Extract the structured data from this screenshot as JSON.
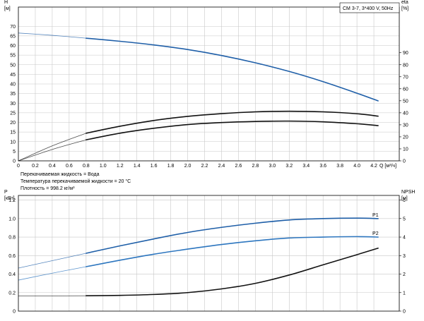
{
  "legend_box": "CM 3-7, 3*400 V, 50Hz",
  "notes": [
    "Перекачиваемая жидкость = Вода",
    "Температура перекачиваемой жидкости = 20 °C",
    "Плотность = 998.2 кг/м³"
  ],
  "colors": {
    "head_curve": "#1f5fa8",
    "p1_curve": "#1f5fa8",
    "p2_curve": "#2d76bf",
    "eta_curve": "#111111",
    "npsh_curve": "#111111",
    "grid": "#c8c8c8"
  },
  "chart_data": [
    {
      "type": "line",
      "x_axis": {
        "label": "Q [м³/ч]",
        "range": [
          0,
          4.5
        ],
        "ticks": [
          0,
          0.2,
          0.4,
          0.6,
          0.8,
          1.0,
          1.2,
          1.4,
          1.6,
          1.8,
          2.0,
          2.2,
          2.4,
          2.6,
          2.8,
          3.0,
          3.2,
          3.4,
          3.6,
          3.8,
          4.0,
          4.2
        ],
        "tick_labels": [
          "0",
          "0.2",
          "0.4",
          "0.6",
          "0.8",
          "1.0",
          "1.2",
          "1.4",
          "1.6",
          "1.8",
          "2.0",
          "2.2",
          "2.4",
          "2.6",
          "2.8",
          "3.0",
          "3.2",
          "3.4",
          "3.6",
          "3.8",
          "4.0",
          "4.2"
        ]
      },
      "y_left": {
        "label_lines": [
          "H",
          "[м]"
        ],
        "range": [
          0,
          80
        ],
        "ticks": [
          0,
          5,
          10,
          15,
          20,
          25,
          30,
          35,
          40,
          45,
          50,
          55,
          60,
          65,
          70
        ],
        "tick_labels": [
          "0",
          "5",
          "10",
          "15",
          "20",
          "25",
          "30",
          "35",
          "40",
          "45",
          "50",
          "55",
          "60",
          "65",
          "70"
        ]
      },
      "y_right": {
        "label_lines": [
          "eta",
          "[%]"
        ],
        "range": [
          0,
          128
        ],
        "ticks": [
          0,
          10,
          20,
          30,
          40,
          50,
          60,
          70,
          80,
          90
        ],
        "tick_labels": [
          "0",
          "10",
          "20",
          "30",
          "40",
          "50",
          "60",
          "70",
          "80",
          "90"
        ]
      },
      "grid": true,
      "series": [
        {
          "key": "head",
          "axis": "left",
          "color": "#1f5fa8",
          "dashed_until": 0.8,
          "x": [
            0,
            0.4,
            0.8,
            1.2,
            1.6,
            2.0,
            2.4,
            2.8,
            3.2,
            3.6,
            4.0,
            4.25
          ],
          "y": [
            66.5,
            65.3,
            63.8,
            62.2,
            60.3,
            57.9,
            54.8,
            51.0,
            46.5,
            41.2,
            35.2,
            31.2
          ]
        },
        {
          "key": "eta_total",
          "axis": "right",
          "color": "#111111",
          "dashed_until": 0.8,
          "x": [
            0,
            0.4,
            0.8,
            1.2,
            1.6,
            2.0,
            2.4,
            2.8,
            3.2,
            3.6,
            4.0,
            4.25
          ],
          "y": [
            0,
            12.5,
            23,
            28.8,
            33.6,
            37.0,
            39.3,
            40.8,
            41.3,
            40.8,
            39.2,
            37.2
          ]
        },
        {
          "key": "eta_pump",
          "axis": "right",
          "color": "#111111",
          "dashed_until": 0.8,
          "x": [
            0,
            0.4,
            0.8,
            1.2,
            1.6,
            2.0,
            2.4,
            2.8,
            3.2,
            3.6,
            4.0,
            4.25
          ],
          "y": [
            0,
            9.5,
            17.5,
            23.0,
            27.1,
            30.2,
            31.9,
            32.8,
            33.1,
            32.5,
            30.9,
            29.3
          ]
        }
      ]
    },
    {
      "type": "line",
      "x_axis": {
        "range": [
          0,
          4.5
        ]
      },
      "y_left": {
        "label_lines": [
          "P",
          "[кВт]"
        ],
        "range": [
          0,
          1.25
        ],
        "ticks": [
          0,
          0.2,
          0.4,
          0.6,
          0.8,
          1.0,
          1.2
        ],
        "tick_labels": [
          "0",
          "0.2",
          "0.4",
          "0.6",
          "0.8",
          "1.0",
          "1.2"
        ]
      },
      "y_right": {
        "label_lines": [
          "NPSH",
          "[м]"
        ],
        "range": [
          0,
          6.25
        ],
        "ticks": [
          0,
          1,
          2,
          3,
          4,
          5,
          6
        ],
        "tick_labels": [
          "0",
          "1",
          "2",
          "3",
          "4",
          "5",
          "6"
        ]
      },
      "grid": true,
      "series": [
        {
          "key": "P1",
          "name": "P1",
          "axis": "left",
          "color": "#1f5fa8",
          "dashed_until": 0.8,
          "x": [
            0,
            0.4,
            0.8,
            1.2,
            1.6,
            2.0,
            2.4,
            2.8,
            3.2,
            3.6,
            4.0,
            4.25
          ],
          "y": [
            0.465,
            0.545,
            0.625,
            0.705,
            0.78,
            0.85,
            0.905,
            0.95,
            0.985,
            1.0,
            1.005,
            1.0
          ]
        },
        {
          "key": "P2",
          "name": "P2",
          "axis": "left",
          "color": "#2d76bf",
          "dashed_until": 0.8,
          "x": [
            0,
            0.4,
            0.8,
            1.2,
            1.6,
            2.0,
            2.4,
            2.8,
            3.2,
            3.6,
            4.0,
            4.25
          ],
          "y": [
            0.335,
            0.41,
            0.48,
            0.55,
            0.615,
            0.67,
            0.72,
            0.76,
            0.79,
            0.8,
            0.805,
            0.8
          ]
        },
        {
          "key": "NPSH",
          "axis": "right",
          "color": "#111111",
          "dashed_until": 0.8,
          "x": [
            0,
            0.4,
            0.8,
            1.2,
            1.6,
            2.0,
            2.4,
            2.8,
            3.2,
            3.6,
            4.0,
            4.25
          ],
          "y": [
            0.82,
            0.82,
            0.83,
            0.85,
            0.9,
            1.0,
            1.2,
            1.5,
            1.95,
            2.5,
            3.05,
            3.4
          ]
        }
      ]
    }
  ]
}
